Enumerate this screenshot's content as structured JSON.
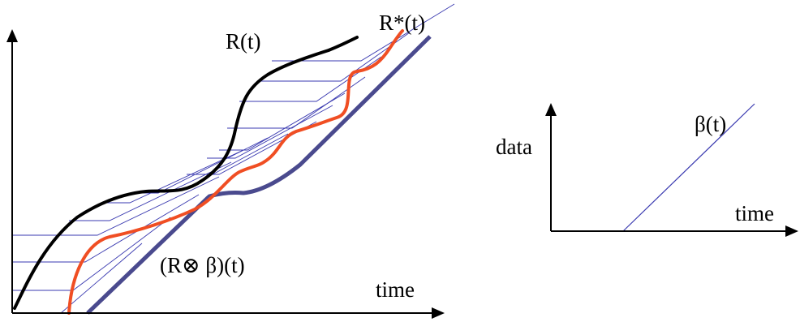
{
  "left_diagram": {
    "curve_label_arrival": "R(t)",
    "curve_label_output": "R*(t)",
    "curve_label_convolution": "(R⊗ β)(t)",
    "x_axis_label": "time"
  },
  "right_diagram": {
    "y_axis_label": "data",
    "x_axis_label": "time",
    "curve_label": "β(t)"
  },
  "colors": {
    "arrival_curve": "#000000",
    "output_curve": "#f04e23",
    "convolution_curve": "#4a4a8e",
    "service_curve_lines": "#3a3ab0",
    "axes": "#000000"
  }
}
